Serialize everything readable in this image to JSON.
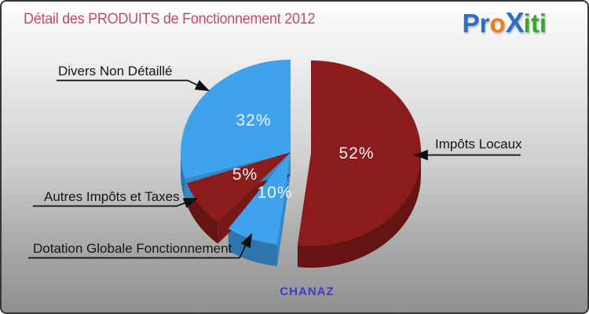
{
  "header": {
    "title": "Détail des PRODUITS de Fonctionnement 2012",
    "title_color": "#c04a72"
  },
  "logo": {
    "name": "Proxiti",
    "letters": [
      {
        "ch": "P",
        "color": "#2b6ec6"
      },
      {
        "ch": "r",
        "color": "#2b6ec6"
      },
      {
        "ch": "o",
        "color": "#ee7d18"
      },
      {
        "ch": "X",
        "color": "#2b6ec6"
      },
      {
        "ch": "i",
        "color": "#3da432"
      },
      {
        "ch": "t",
        "color": "#3da432"
      },
      {
        "ch": "i",
        "color": "#3da432"
      }
    ]
  },
  "footer": {
    "commune": "CHANAZ",
    "color": "#3b3bd0"
  },
  "chart_data": {
    "type": "pie",
    "style": "3d-exploded",
    "title": "Détail des PRODUITS de Fonctionnement 2012",
    "unit": "percent",
    "legend_position": "callouts",
    "slices": [
      {
        "label": "Impôts Locaux",
        "value": 52,
        "display": "52%",
        "color": "#8c1b1b"
      },
      {
        "label": "Dotation Globale Fonctionnement",
        "value": 10,
        "display": "10%",
        "color": "#3fa2ec"
      },
      {
        "label": "Autres Impôts et Taxes",
        "value": 5,
        "display": "5%",
        "color": "#8c1b1b"
      },
      {
        "label": "Divers Non Détaillé",
        "value": 32,
        "display": "32%",
        "color": "#3fa2ec"
      }
    ]
  }
}
